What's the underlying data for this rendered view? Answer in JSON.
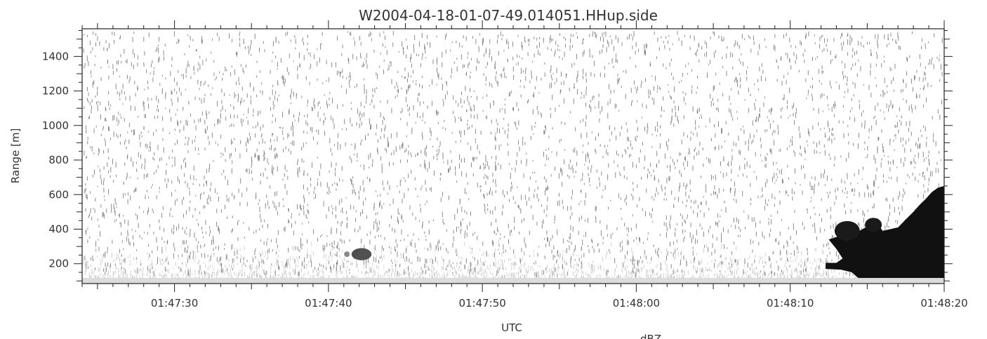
{
  "chart_data": {
    "type": "heatmap",
    "title": "W2004-04-18-01-07-49.014051.HHup.side",
    "xlabel": "UTC",
    "ylabel": "Range [m]",
    "colorbar_label": "dBZ",
    "x_range_seconds": [
      -6,
      50
    ],
    "x_ticks": [
      {
        "value": 0,
        "label": "01:47:30"
      },
      {
        "value": 10,
        "label": "01:47:40"
      },
      {
        "value": 20,
        "label": "01:47:50"
      },
      {
        "value": 30,
        "label": "01:48:00"
      },
      {
        "value": 40,
        "label": "01:48:10"
      },
      {
        "value": 50,
        "label": "01:48:20"
      }
    ],
    "ylim": [
      85,
      1560
    ],
    "y_ticks": [
      {
        "value": 200,
        "label": "200"
      },
      {
        "value": 400,
        "label": "400"
      },
      {
        "value": 600,
        "label": "600"
      },
      {
        "value": 800,
        "label": "800"
      },
      {
        "value": 1000,
        "label": "1000"
      },
      {
        "value": 1200,
        "label": "1200"
      },
      {
        "value": 1400,
        "label": "1400"
      }
    ],
    "colormap": "grayscale (white low, black high)",
    "features": [
      {
        "name": "small echo",
        "time_range": [
          11.5,
          12.8
        ],
        "range_m": [
          220,
          290
        ]
      },
      {
        "name": "cloud echo",
        "time_range": [
          42,
          50
        ],
        "range_m": [
          85,
          650
        ]
      }
    ]
  }
}
